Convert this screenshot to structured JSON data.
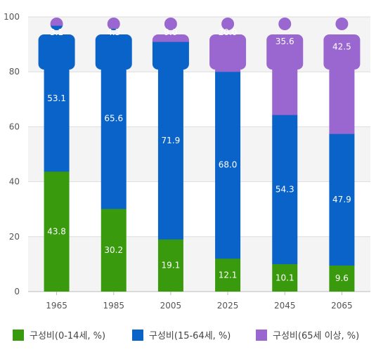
{
  "chart_data": {
    "type": "bar",
    "stacked": true,
    "categories": [
      "1965",
      "1985",
      "2005",
      "2025",
      "2045",
      "2065"
    ],
    "series": [
      {
        "name": "구성비(0-14세, %)",
        "color": "#3a9a0e",
        "values": [
          43.8,
          30.2,
          19.1,
          12.1,
          10.1,
          9.6
        ]
      },
      {
        "name": "구성비(15-64세, %)",
        "color": "#0a63c9",
        "values": [
          53.1,
          65.6,
          71.9,
          68.0,
          54.3,
          47.9
        ]
      },
      {
        "name": "구성비(65세 이상, %)",
        "color": "#9a66cf",
        "values": [
          3.1,
          4.3,
          9.0,
          20.0,
          35.6,
          42.5
        ]
      }
    ],
    "ylim": [
      0,
      100
    ],
    "yticks": [
      0,
      20,
      40,
      60,
      80,
      100
    ],
    "grid": true,
    "legend_position": "bottom",
    "bar_style": "person-pictogram"
  }
}
